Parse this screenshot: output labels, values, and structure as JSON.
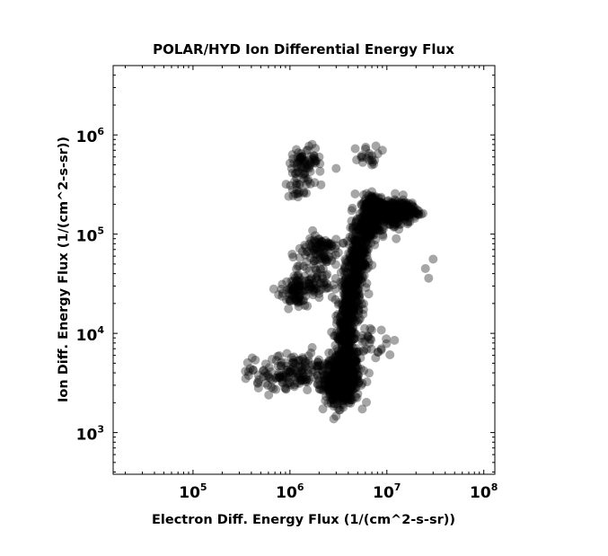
{
  "chart_data": {
    "type": "scatter",
    "title": "POLAR/HYD  Ion Differential Energy Flux",
    "xlabel": "Electron Diff. Energy Flux (1/(cm^2-s-sr))",
    "ylabel": "Ion Diff. Energy Flux (1/(cm^2-s-sr))",
    "x_scale": "log",
    "y_scale": "log",
    "xlim": [
      15000,
      130000000
    ],
    "ylim": [
      380,
      5000000
    ],
    "xticks": [
      {
        "value": 100000,
        "base": "10",
        "exp": "5"
      },
      {
        "value": 1000000,
        "base": "10",
        "exp": "6"
      },
      {
        "value": 10000000,
        "base": "10",
        "exp": "7"
      },
      {
        "value": 100000000,
        "base": "10",
        "exp": "8"
      }
    ],
    "yticks": [
      {
        "value": 1000,
        "base": "10",
        "exp": "3"
      },
      {
        "value": 10000,
        "base": "10",
        "exp": "4"
      },
      {
        "value": 100000,
        "base": "10",
        "exp": "5"
      },
      {
        "value": 1000000,
        "base": "10",
        "exp": "6"
      }
    ],
    "marker_color": "#000000",
    "marker_alpha": 0.35,
    "grid": false,
    "legend": false,
    "clusters": [
      {
        "x": 3500000,
        "y": 3500,
        "sx": 0.09,
        "sy": 0.12,
        "n": 520
      },
      {
        "x": 3200000,
        "y": 2800,
        "sx": 0.05,
        "sy": 0.07,
        "n": 160
      },
      {
        "x": 1300000,
        "y": 4200,
        "sx": 0.18,
        "sy": 0.1,
        "n": 110
      },
      {
        "x": 700000,
        "y": 3800,
        "sx": 0.14,
        "sy": 0.09,
        "n": 60
      },
      {
        "x": 3800000,
        "y": 9000,
        "sx": 0.05,
        "sy": 0.15,
        "n": 200
      },
      {
        "x": 4200000,
        "y": 22000,
        "sx": 0.05,
        "sy": 0.14,
        "n": 220
      },
      {
        "x": 5000000,
        "y": 55000,
        "sx": 0.05,
        "sy": 0.13,
        "n": 220
      },
      {
        "x": 6200000,
        "y": 120000,
        "sx": 0.06,
        "sy": 0.1,
        "n": 200
      },
      {
        "x": 7500000,
        "y": 190000,
        "sx": 0.06,
        "sy": 0.06,
        "n": 230
      },
      {
        "x": 11000000,
        "y": 160000,
        "sx": 0.08,
        "sy": 0.07,
        "n": 150
      },
      {
        "x": 16000000,
        "y": 170000,
        "sx": 0.06,
        "sy": 0.05,
        "n": 90
      },
      {
        "x": 2000000,
        "y": 70000,
        "sx": 0.1,
        "sy": 0.09,
        "n": 90
      },
      {
        "x": 1100000,
        "y": 25000,
        "sx": 0.07,
        "sy": 0.07,
        "n": 70
      },
      {
        "x": 1700000,
        "y": 35000,
        "sx": 0.1,
        "sy": 0.12,
        "n": 80
      },
      {
        "x": 1500000,
        "y": 560000,
        "sx": 0.08,
        "sy": 0.07,
        "n": 60
      },
      {
        "x": 1300000,
        "y": 330000,
        "sx": 0.08,
        "sy": 0.08,
        "n": 35
      },
      {
        "x": 6500000,
        "y": 600000,
        "sx": 0.07,
        "sy": 0.06,
        "n": 20
      },
      {
        "x": 5500000,
        "y": 8000,
        "sx": 0.12,
        "sy": 0.1,
        "n": 40
      }
    ],
    "outliers": [
      {
        "x": 25000000,
        "y": 45000
      },
      {
        "x": 30000000,
        "y": 56000
      },
      {
        "x": 27000000,
        "y": 36000
      },
      {
        "x": 12000000,
        "y": 8500
      },
      {
        "x": 350000,
        "y": 3500
      },
      {
        "x": 680000,
        "y": 28000
      },
      {
        "x": 12500000,
        "y": 90000
      },
      {
        "x": 9000000,
        "y": 700000
      },
      {
        "x": 3000000,
        "y": 460000
      },
      {
        "x": 6500000,
        "y": 25000
      }
    ]
  }
}
